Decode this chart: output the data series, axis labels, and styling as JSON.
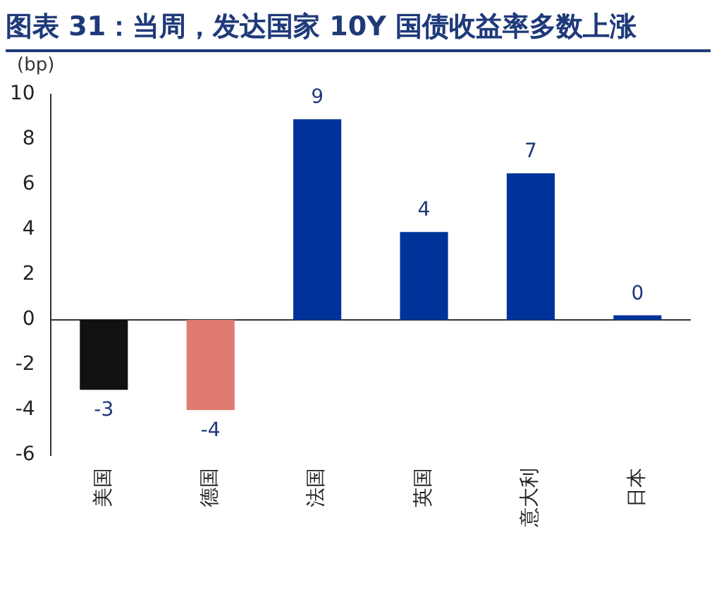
{
  "chart_data": {
    "type": "bar",
    "title": "图表 31：当周，发达国家 10Y 国债收益率多数上涨",
    "ylabel": "(bp)",
    "categories": [
      "美国",
      "德国",
      "法国",
      "英国",
      "意大利",
      "日本"
    ],
    "values": [
      -3.1,
      -4,
      8.9,
      3.9,
      6.5,
      0.2
    ],
    "colors": [
      "#111111",
      "#e07b72",
      "#003399",
      "#003399",
      "#003399",
      "#003399"
    ],
    "value_labels": [
      "-3",
      "-4",
      "9",
      "4",
      "7",
      "0"
    ],
    "ylim": [
      -6,
      10
    ],
    "yticks": [
      -6,
      -4,
      -2,
      0,
      2,
      4,
      6,
      8,
      10
    ],
    "ref_lines": [
      {
        "axis": "y",
        "value": 0,
        "color": "#333333"
      }
    ],
    "grid": false,
    "legend": false
  }
}
